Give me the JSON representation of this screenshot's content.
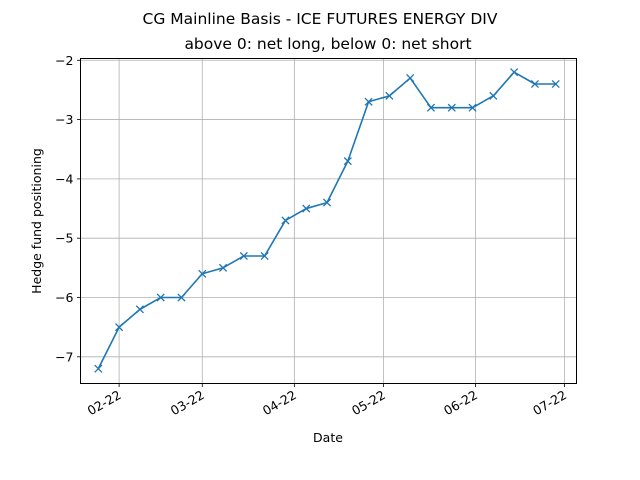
{
  "chart_data": {
    "type": "line",
    "title": "CG Mainline Basis - ICE FUTURES ENERGY DIV",
    "subtitle": "above 0: net long, below 0: net short",
    "xlabel": "Date",
    "ylabel": "Hedge fund positioning",
    "x_tick_labels": [
      "02-22",
      "03-22",
      "04-22",
      "05-22",
      "06-22",
      "07-22"
    ],
    "x_tick_dates": [
      "2022-02-01",
      "2022-03-01",
      "2022-04-01",
      "2022-05-01",
      "2022-06-01",
      "2022-07-01"
    ],
    "y_ticks": [
      -7,
      -6,
      -5,
      -4,
      -3,
      -2
    ],
    "y_tick_labels": [
      "−7",
      "−6",
      "−5",
      "−4",
      "−3",
      "−2"
    ],
    "xlim": [
      "2022-01-19",
      "2022-07-05"
    ],
    "ylim": [
      -7.45,
      -1.97
    ],
    "grid": true,
    "marker": "x",
    "line_color": "#1f77b4",
    "series": [
      {
        "x": [
          "2022-01-25",
          "2022-02-01",
          "2022-02-08",
          "2022-02-15",
          "2022-02-22",
          "2022-03-01",
          "2022-03-08",
          "2022-03-15",
          "2022-03-22",
          "2022-03-29",
          "2022-04-05",
          "2022-04-12",
          "2022-04-19",
          "2022-04-26",
          "2022-05-03",
          "2022-05-10",
          "2022-05-17",
          "2022-05-24",
          "2022-05-31",
          "2022-06-07",
          "2022-06-14",
          "2022-06-21",
          "2022-06-28"
        ],
        "values": [
          -7.2,
          -6.5,
          -6.2,
          -6.0,
          -6.0,
          -5.6,
          -5.5,
          -5.3,
          -5.3,
          -4.7,
          -4.5,
          -4.4,
          -3.7,
          -2.7,
          -2.6,
          -2.3,
          -2.8,
          -2.8,
          -2.8,
          -2.6,
          -2.2,
          -2.4,
          -2.4
        ]
      }
    ]
  }
}
